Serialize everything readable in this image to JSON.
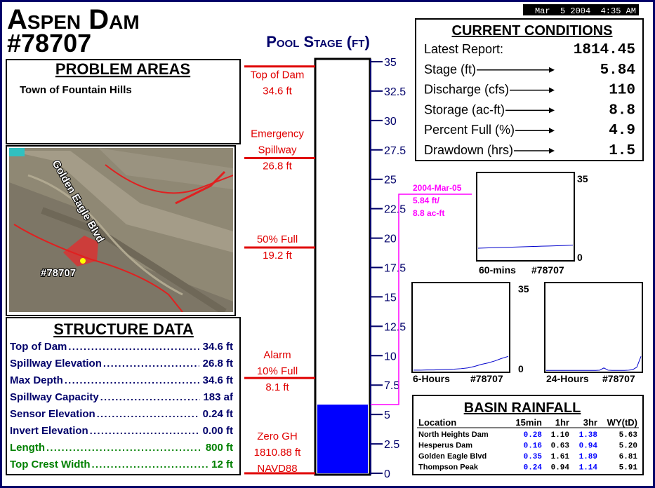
{
  "header": {
    "title": "Aspen Dam",
    "station": "#78707",
    "timestamp": "Mar  5 2004  4:35 AM"
  },
  "problem_areas": {
    "title": "PROBLEM AREAS",
    "items": [
      "Town of Fountain Hills"
    ]
  },
  "map": {
    "road_label": "Golden Eagle Blvd",
    "site_label": "#78707"
  },
  "structure_data": {
    "title": "STRUCTURE DATA",
    "rows": [
      {
        "label": "Top of Dam",
        "value": "34.6 ft",
        "color": "#00006a"
      },
      {
        "label": "Spillway Elevation",
        "value": "26.8 ft",
        "color": "#00006a"
      },
      {
        "label": "Max Depth",
        "value": "34.6 ft",
        "color": "#00006a"
      },
      {
        "label": "Spillway Capacity",
        "value": "183 af",
        "color": "#00006a"
      },
      {
        "label": "Sensor Elevation",
        "value": "0.24 ft",
        "color": "#00006a"
      },
      {
        "label": "Invert Elevation",
        "value": "0.00 ft",
        "color": "#00006a"
      },
      {
        "label": "Length",
        "value": "800 ft",
        "color": "#008000"
      },
      {
        "label": "Top Crest Width",
        "value": "12 ft",
        "color": "#008000"
      }
    ]
  },
  "chart_data": [
    {
      "type": "bar",
      "title": "Pool Stage (ft)",
      "values": [
        5.84
      ],
      "color": "#0000ff",
      "ylim": [
        0,
        35
      ],
      "yticks": [
        0,
        2.5,
        5,
        7.5,
        10,
        12.5,
        15,
        17.5,
        20,
        22.5,
        25,
        27.5,
        30,
        32.5,
        35
      ],
      "markers": [
        {
          "stage": 34.6,
          "lines": [
            "Top of Dam",
            "34.6 ft"
          ]
        },
        {
          "stage": 26.8,
          "lines": [
            "Emergency",
            "Spillway",
            "26.8 ft"
          ]
        },
        {
          "stage": 19.2,
          "lines": [
            "50% Full",
            "19.2 ft"
          ]
        },
        {
          "stage": 8.1,
          "lines": [
            "Alarm",
            "10% Full",
            "8.1 ft"
          ]
        },
        {
          "stage": 0,
          "lines": [
            "Zero GH",
            "1810.88 ft",
            "NAVD88"
          ]
        }
      ],
      "marker_color": "#e00000",
      "annotation": {
        "color": "#ff00ff",
        "lines": [
          "2004-Mar-05",
          "5.84 ft/",
          "8.8 ac-ft"
        ]
      }
    },
    {
      "type": "line",
      "label": "60-mins",
      "station": "#78707",
      "ylim": [
        0,
        35
      ],
      "yticks": [
        0,
        35
      ],
      "series": [
        {
          "color": "#0000cc",
          "values": [
            4.6,
            4.7,
            4.8,
            4.9,
            5.0,
            5.1,
            5.2,
            5.3,
            5.4,
            5.5,
            5.6,
            5.7,
            5.84
          ]
        }
      ]
    },
    {
      "type": "line",
      "label": "6-Hours",
      "station": "#78707",
      "ylim": [
        0,
        35
      ],
      "yticks": [
        0,
        35
      ],
      "series": [
        {
          "color": "#0000cc",
          "values": [
            0.3,
            0.3,
            0.4,
            0.4,
            0.5,
            0.6,
            0.7,
            0.9,
            1.2,
            1.8,
            2.6,
            3.2,
            4.0,
            5.0,
            5.84
          ]
        }
      ]
    },
    {
      "type": "line",
      "label": "24-Hours",
      "station": "#78707",
      "ylim": [
        0,
        35
      ],
      "series": [
        {
          "color": "#0000cc",
          "values": [
            0.2,
            0.2,
            0.2,
            0.2,
            0.2,
            0.2,
            0.2,
            0.2,
            0.2,
            0.2,
            0.2,
            0.2,
            0.2,
            0.3,
            1.2,
            0.3,
            0.2,
            0.2,
            0.2,
            0.2,
            0.3,
            0.5,
            1.5,
            5.84
          ]
        }
      ]
    }
  ],
  "current_conditions": {
    "title": "CURRENT CONDITIONS",
    "rows": [
      {
        "label": "Latest Report:",
        "value": "1814.45"
      },
      {
        "label": "Stage (ft)",
        "value": "5.84"
      },
      {
        "label": "Discharge (cfs)",
        "value": "110"
      },
      {
        "label": "Storage (ac-ft)",
        "value": "8.8"
      },
      {
        "label": "Percent Full (%)",
        "value": "4.9"
      },
      {
        "label": "Drawdown (hrs)",
        "value": "1.5"
      }
    ]
  },
  "basin_rainfall": {
    "title": "BASIN RAINFALL",
    "columns": [
      "Location",
      "15min",
      "1hr",
      "3hr",
      "WY(tD)"
    ],
    "column_colors": [
      "#000000",
      "#0000ff",
      "#000000",
      "#0000ff",
      "#000000"
    ],
    "rows": [
      [
        "North Heights Dam",
        "0.28",
        "1.10",
        "1.38",
        "5.63"
      ],
      [
        "Hesperus Dam",
        "0.16",
        "0.63",
        "0.94",
        "5.20"
      ],
      [
        "Golden Eagle Blvd",
        "0.35",
        "1.61",
        "1.89",
        "6.81"
      ],
      [
        "Thompson Peak",
        "0.24",
        "0.94",
        "1.14",
        "5.91"
      ]
    ]
  }
}
